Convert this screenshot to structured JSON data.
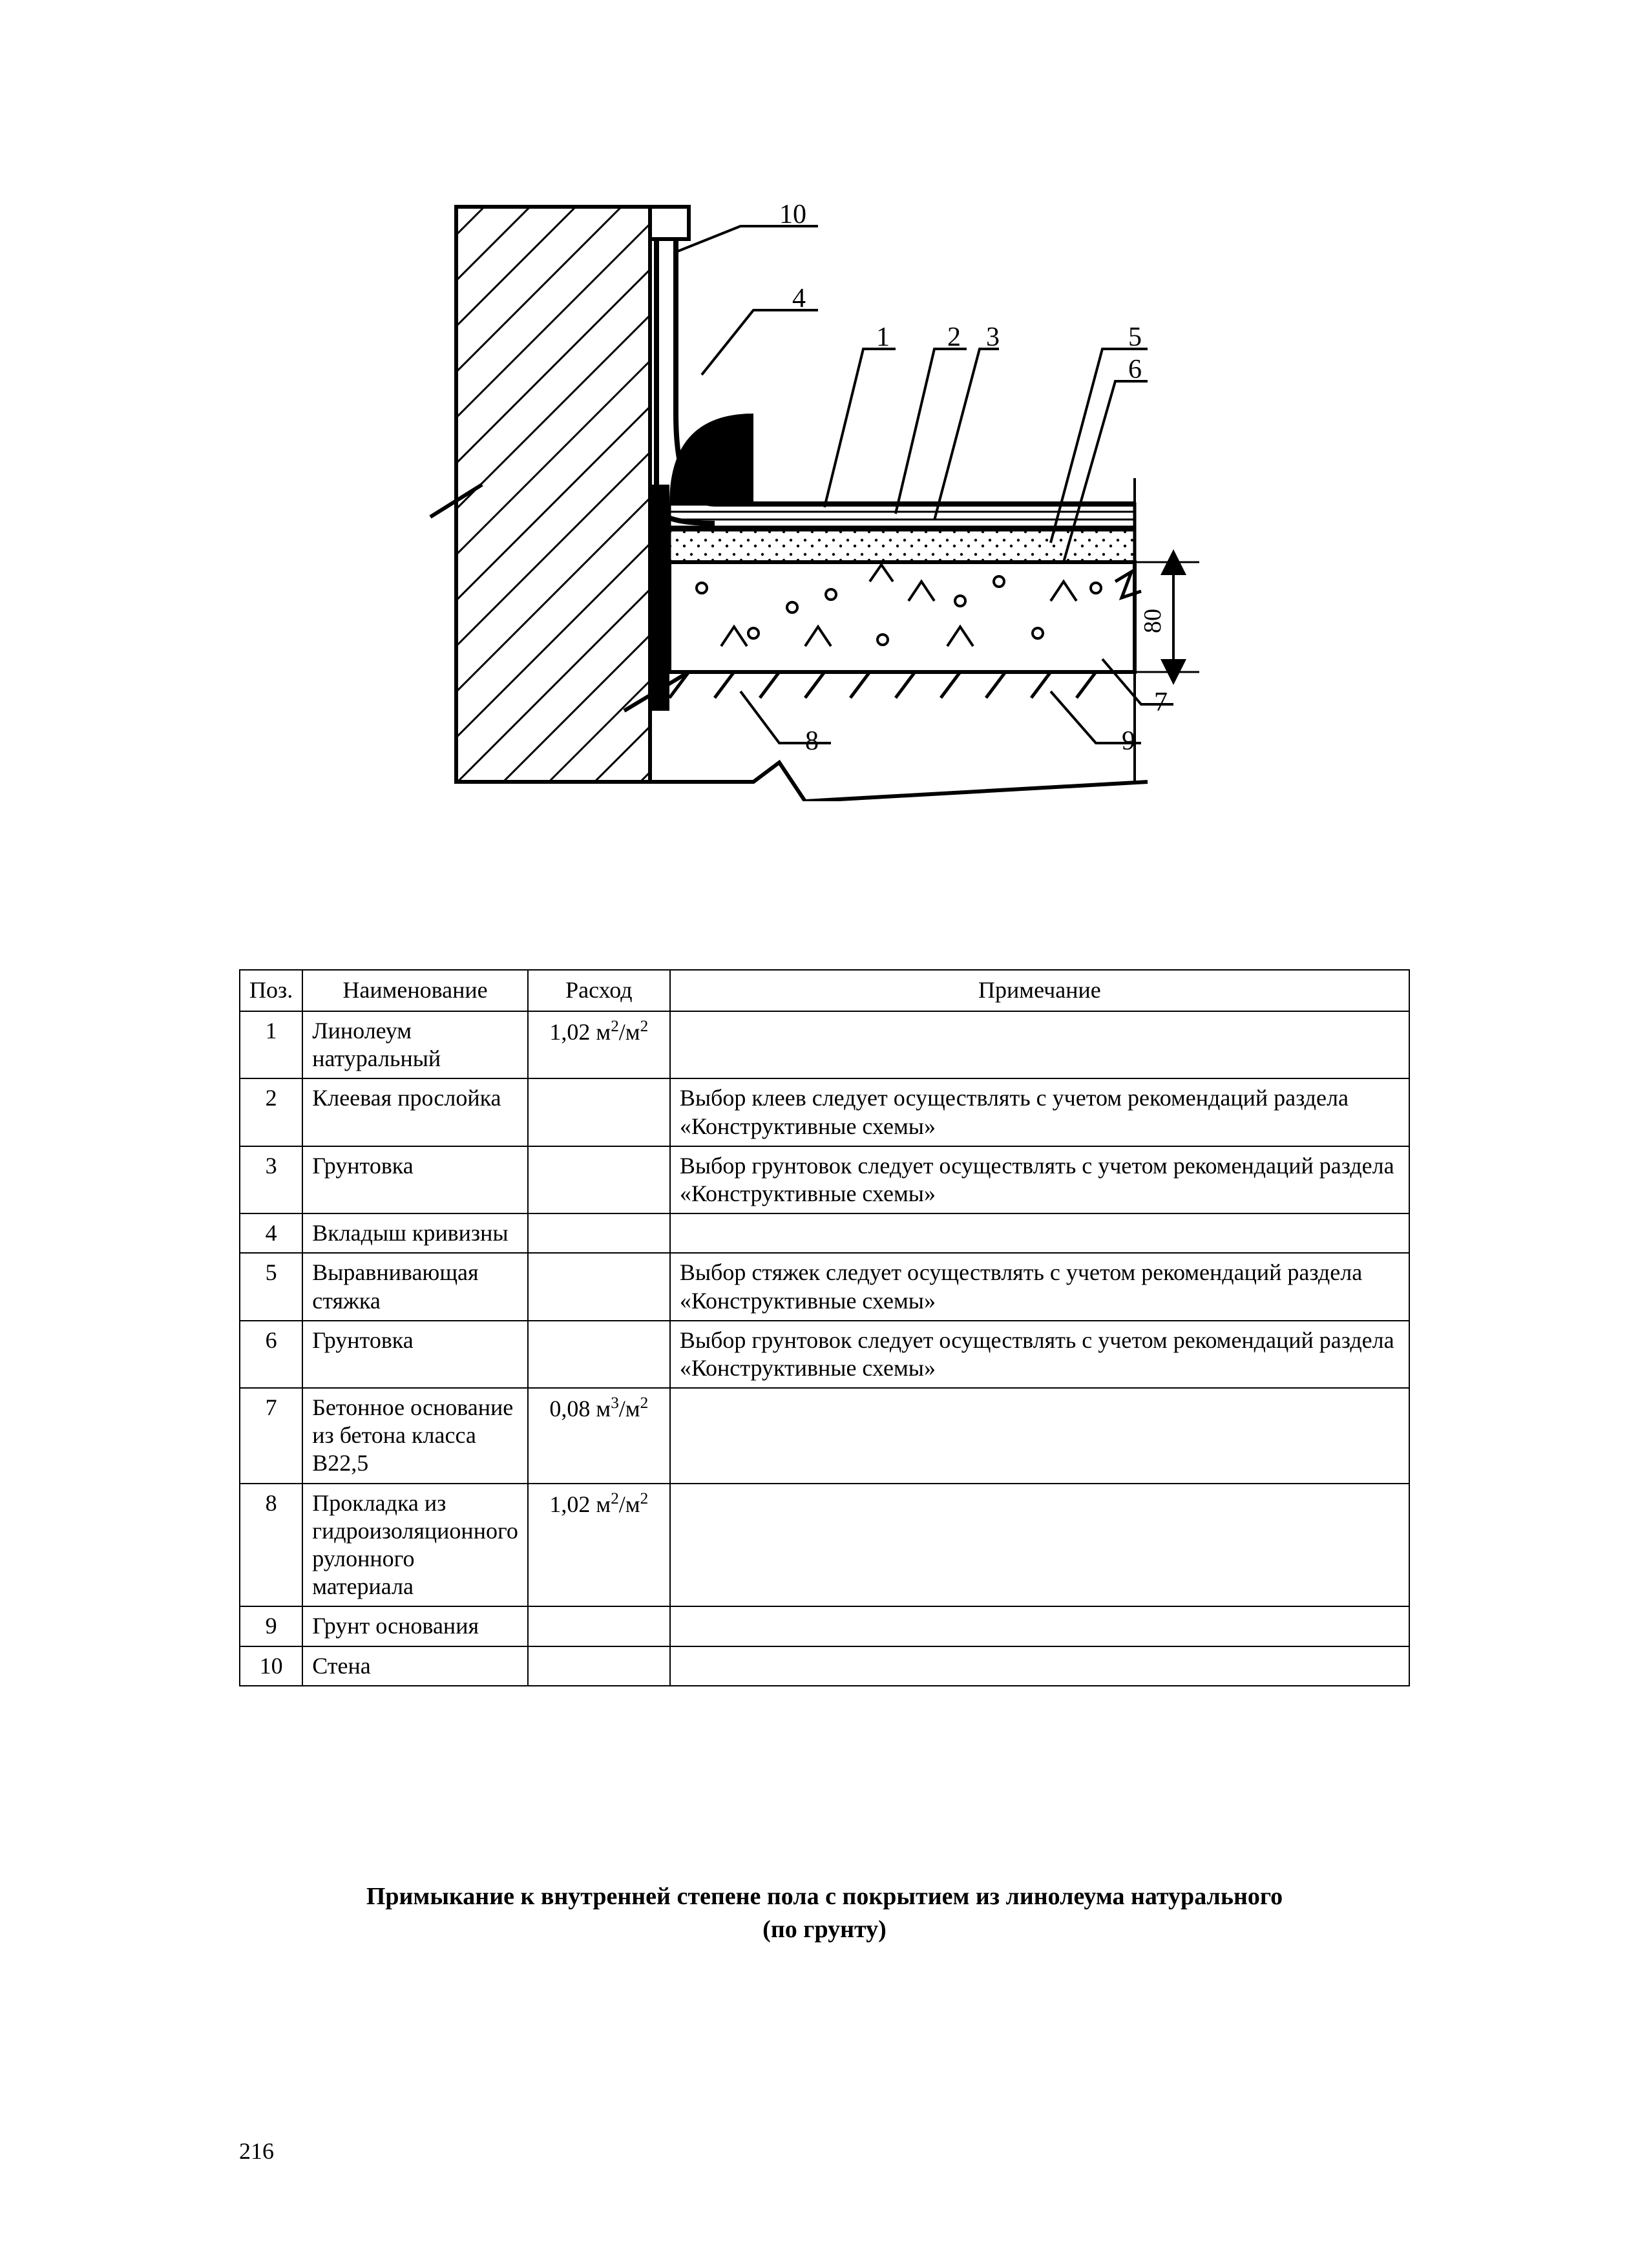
{
  "page_number": "216",
  "caption_line1": "Примыкание к внутренней степене пола с покрытием из линолеума натурального",
  "caption_line2": "(по грунту)",
  "diagram": {
    "callouts": [
      "1",
      "2",
      "3",
      "4",
      "5",
      "6",
      "7",
      "8",
      "9",
      "10"
    ],
    "dim_label": "80",
    "stroke": "#000000",
    "bg": "#ffffff"
  },
  "table": {
    "columns": [
      "Поз.",
      "Наименование",
      "Расход",
      "Примечание"
    ],
    "rows": [
      {
        "pos": "1",
        "name": "Линолеум натуральный",
        "cons_base": "1,02 м",
        "cons_sup1": "2",
        "cons_mid": "/м",
        "cons_sup2": "2",
        "note": ""
      },
      {
        "pos": "2",
        "name": "Клеевая прослойка",
        "cons_base": "",
        "cons_sup1": "",
        "cons_mid": "",
        "cons_sup2": "",
        "note": "Выбор клеев следует осуществлять с учетом рекомендаций раздела «Конструктивные схемы»"
      },
      {
        "pos": "3",
        "name": "Грунтовка",
        "cons_base": "",
        "cons_sup1": "",
        "cons_mid": "",
        "cons_sup2": "",
        "note": "Выбор грунтовок следует осуществлять с учетом рекомендаций раздела «Конструктивные схемы»"
      },
      {
        "pos": "4",
        "name": "Вкладыш кривизны",
        "cons_base": "",
        "cons_sup1": "",
        "cons_mid": "",
        "cons_sup2": "",
        "note": ""
      },
      {
        "pos": "5",
        "name": "Выравнивающая стяжка",
        "cons_base": "",
        "cons_sup1": "",
        "cons_mid": "",
        "cons_sup2": "",
        "note": "Выбор стяжек следует осуществлять с учетом рекомендаций раздела «Конструктивные схемы»"
      },
      {
        "pos": "6",
        "name": "Грунтовка",
        "cons_base": "",
        "cons_sup1": "",
        "cons_mid": "",
        "cons_sup2": "",
        "note": "Выбор грунтовок следует осуществлять с учетом рекомендаций раздела «Конструктивные схемы»"
      },
      {
        "pos": "7",
        "name": "Бетонное основание из бетона класса В22,5",
        "cons_base": "0,08 м",
        "cons_sup1": "3",
        "cons_mid": "/м",
        "cons_sup2": "2",
        "note": ""
      },
      {
        "pos": "8",
        "name": "Прокладка из гидроизоляционного рулонного материала",
        "cons_base": "1,02 м",
        "cons_sup1": "2",
        "cons_mid": "/м",
        "cons_sup2": "2",
        "note": ""
      },
      {
        "pos": "9",
        "name": "Грунт основания",
        "cons_base": "",
        "cons_sup1": "",
        "cons_mid": "",
        "cons_sup2": "",
        "note": ""
      },
      {
        "pos": "10",
        "name": "Стена",
        "cons_base": "",
        "cons_sup1": "",
        "cons_mid": "",
        "cons_sup2": "",
        "note": ""
      }
    ]
  }
}
